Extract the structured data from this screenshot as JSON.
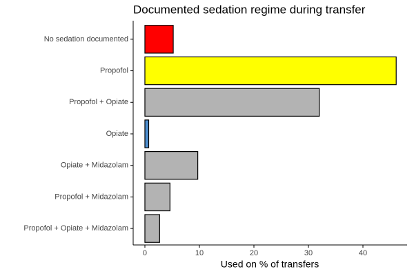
{
  "chart_data": {
    "type": "hbar",
    "title": "Documented sedation regime during transfer",
    "x_label": "Used on % of transfers",
    "categories": [
      "No sedation documented",
      "Propofol",
      "Propofol + Opiate",
      "Opiate",
      "Opiate + Midazolam",
      "Propofol + Midazolam",
      "Propofol + Opiate + Midazolam"
    ],
    "values": [
      5.2,
      46.1,
      32.0,
      0.7,
      9.7,
      4.6,
      2.7
    ],
    "colors": [
      "#ff0000",
      "#ffff00",
      "#b3b3b3",
      "#4f8fcf",
      "#b3b3b3",
      "#b3b3b3",
      "#b3b3b3"
    ],
    "xlim": [
      -2.15,
      48.1
    ],
    "xticks": [
      0,
      10,
      20,
      30,
      40
    ],
    "grid": false
  }
}
